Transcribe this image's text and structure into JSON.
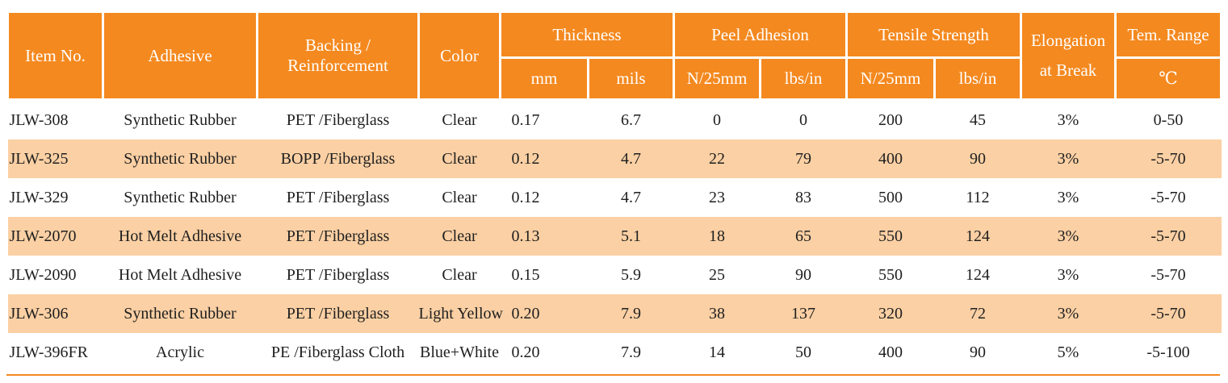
{
  "header": {
    "item_no": "Item No.",
    "adhesive": "Adhesive",
    "backing_line1": "Backing /",
    "backing_line2": "Reinforcement",
    "color": "Color",
    "thickness": "Thickness",
    "peel_adhesion": "Peel Adhesion",
    "tensile_strength": "Tensile Strength",
    "elongation_line1": "Elongation",
    "elongation_line2": "at Break",
    "tem_range": "Tem. Range",
    "unit_mm": "mm",
    "unit_mils": "mils",
    "unit_peel_n": "N/25mm",
    "unit_peel_lbs": "lbs/in",
    "unit_tensile_n": "N/25mm",
    "unit_tensile_lbs": "lbs/in",
    "unit_temp": "℃"
  },
  "rows": [
    [
      "JLW-308",
      "Synthetic Rubber",
      "PET /Fiberglass",
      "Clear",
      "0.17",
      "6.7",
      "0",
      "0",
      "200",
      "45",
      "3%",
      "0-50"
    ],
    [
      "JLW-325",
      "Synthetic Rubber",
      "BOPP /Fiberglass",
      "Clear",
      "0.12",
      "4.7",
      "22",
      "79",
      "400",
      "90",
      "3%",
      "-5-70"
    ],
    [
      "JLW-329",
      "Synthetic Rubber",
      "PET /Fiberglass",
      "Clear",
      "0.12",
      "4.7",
      "23",
      "83",
      "500",
      "112",
      "3%",
      "-5-70"
    ],
    [
      "JLW-2070",
      "Hot Melt Adhesive",
      "PET /Fiberglass",
      "Clear",
      "0.13",
      "5.1",
      "18",
      "65",
      "550",
      "124",
      "3%",
      "-5-70"
    ],
    [
      "JLW-2090",
      "Hot Melt Adhesive",
      "PET /Fiberglass",
      "Clear",
      "0.15",
      "5.9",
      "25",
      "90",
      "550",
      "124",
      "3%",
      "-5-70"
    ],
    [
      "JLW-306",
      "Synthetic Rubber",
      "PET /Fiberglass",
      "Light Yellow",
      "0.20",
      "7.9",
      "38",
      "137",
      "320",
      "72",
      "3%",
      "-5-70"
    ],
    [
      "JLW-396FR",
      "Acrylic",
      "PE /Fiberglass Cloth",
      "Blue+White",
      "0.20",
      "7.9",
      "14",
      "50",
      "400",
      "90",
      "5%",
      "-5-100"
    ]
  ],
  "colors": {
    "header_bg": "#f4891f",
    "stripe_bg": "#fbd0a4",
    "header_text": "#ffffff"
  }
}
